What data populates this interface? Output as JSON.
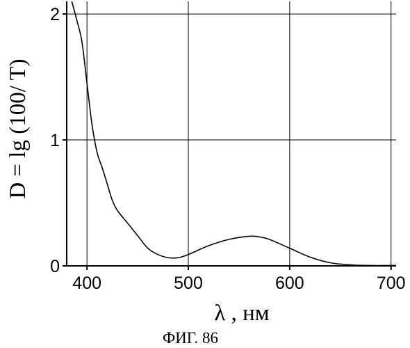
{
  "chart_data": {
    "type": "line",
    "title": "",
    "ylabel": "D = lg (100/ T)",
    "xlabel": "λ , нм",
    "caption": "ФИГ. 86",
    "xlim": [
      380,
      705
    ],
    "ylim": [
      0,
      2.1
    ],
    "x_ticks": [
      400,
      500,
      600,
      700
    ],
    "y_ticks": [
      0,
      1,
      2
    ],
    "grid": true,
    "series": [
      {
        "x": [
          385,
          390,
          395,
          400,
          405,
          410,
          415,
          420,
          425,
          430,
          440,
          450,
          460,
          470,
          480,
          490,
          500,
          520,
          540,
          560,
          570,
          580,
          600,
          620,
          640,
          660,
          680,
          700,
          705
        ],
        "y": [
          2.1,
          1.95,
          1.78,
          1.45,
          1.12,
          0.9,
          0.78,
          0.65,
          0.52,
          0.44,
          0.34,
          0.24,
          0.14,
          0.09,
          0.065,
          0.065,
          0.09,
          0.16,
          0.21,
          0.235,
          0.23,
          0.21,
          0.14,
          0.07,
          0.025,
          0.008,
          0.003,
          0.003,
          0.003
        ]
      }
    ]
  }
}
